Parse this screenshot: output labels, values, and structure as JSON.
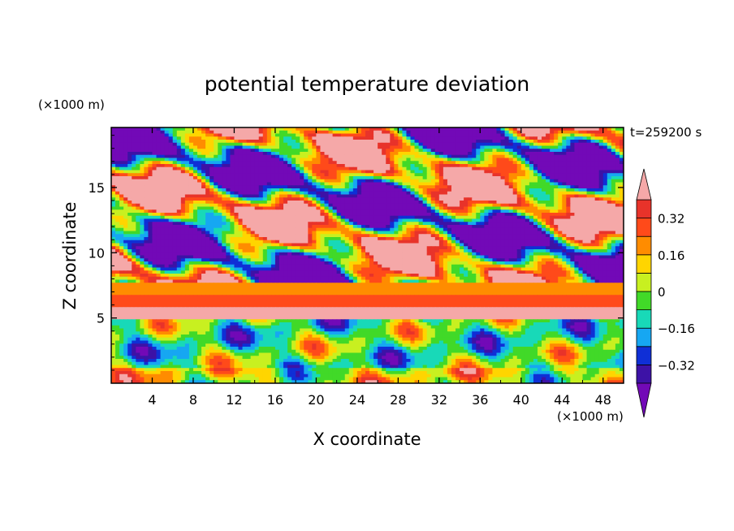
{
  "chart_data": {
    "type": "heatmap",
    "title": "potential temperature deviation",
    "xlabel": "X coordinate",
    "ylabel": "Z coordinate",
    "x_unit": "(×1000 m)",
    "z_unit": "(×1000 m)",
    "time_label": "t=259200 s",
    "xlim": [
      0,
      50
    ],
    "ylim": [
      0,
      19.6
    ],
    "x_ticks": [
      4,
      8,
      12,
      16,
      20,
      24,
      28,
      32,
      36,
      40,
      44,
      48
    ],
    "y_ticks": [
      5,
      10,
      15
    ],
    "colorbar": {
      "levels": [
        -0.4,
        -0.32,
        -0.24,
        -0.16,
        -0.08,
        0,
        0.08,
        0.16,
        0.24,
        0.32,
        0.4
      ],
      "labels": [
        {
          "value": 0.32,
          "text": "0.32"
        },
        {
          "value": 0.16,
          "text": "0.16"
        },
        {
          "value": 0,
          "text": "0"
        },
        {
          "value": -0.16,
          "text": "−0.16"
        },
        {
          "value": -0.32,
          "text": "−0.32"
        }
      ],
      "under_color": "#7209b7",
      "over_color": "#f5a8a8",
      "colors": [
        "#3d12a6",
        "#0f2fd6",
        "#16a7f2",
        "#18d9b8",
        "#41d928",
        "#c8f020",
        "#ffd500",
        "#ff8c00",
        "#ff4a1a",
        "#e8332a"
      ]
    },
    "layers": [
      {
        "z": [
          0,
          5
        ],
        "description_type": "turbulent boundary layer",
        "value_range": [
          -0.4,
          0.4
        ]
      },
      {
        "z": [
          5,
          5.8
        ],
        "value": 0.4
      },
      {
        "z": [
          5.8,
          7.6
        ],
        "value": 0.22
      },
      {
        "z": [
          7.6,
          19.6
        ],
        "value_range": [
          -0.45,
          0.45
        ]
      }
    ],
    "grid": false,
    "legend": "right"
  }
}
